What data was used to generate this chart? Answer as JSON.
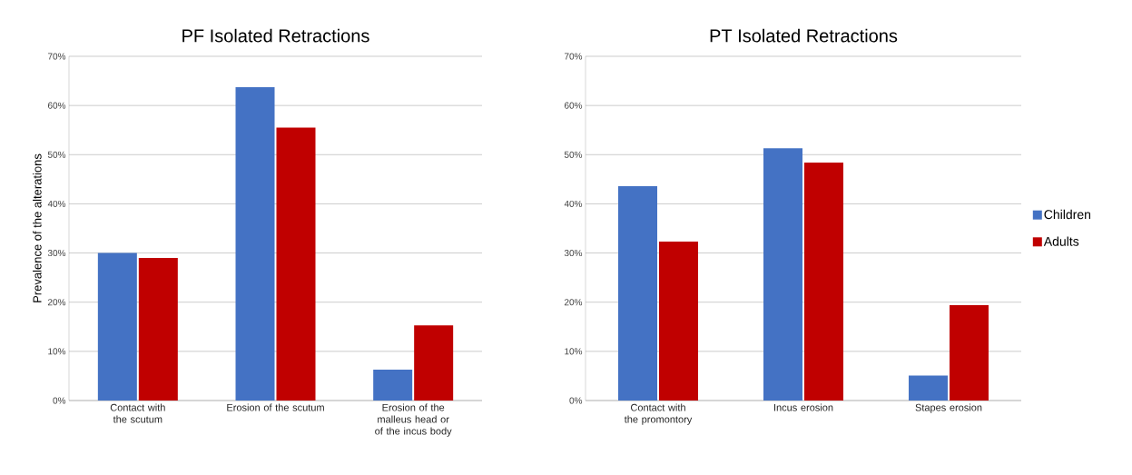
{
  "chart_data": [
    {
      "type": "bar",
      "title": "PF Isolated Retractions",
      "ylabel": "Prevalence of the alterations",
      "categories": [
        "Contact with the scutum",
        "Erosion of the scutum",
        "Erosion of the malleus head or of the incus body"
      ],
      "series": [
        {
          "color": "#4472c4",
          "values": [
            30,
            63.7,
            6.3
          ]
        },
        {
          "color": "#c00000",
          "values": [
            29,
            55.5,
            15.3
          ]
        }
      ],
      "ylim": [
        0,
        70
      ],
      "yticks": [
        {
          "value": 0,
          "label": "0%"
        },
        {
          "value": 10,
          "label": "10%"
        },
        {
          "value": 20,
          "label": "20%"
        },
        {
          "value": 30,
          "label": "30%"
        },
        {
          "value": 40,
          "label": "40%"
        },
        {
          "value": 50,
          "label": "50%"
        },
        {
          "value": 60,
          "label": "60%"
        },
        {
          "value": 70,
          "label": "70%"
        }
      ],
      "grid": "y",
      "legend": false
    },
    {
      "type": "bar",
      "title": "PT Isolated Retractions",
      "categories": [
        "Contact with the promontory",
        "Incus erosion",
        "Stapes erosion"
      ],
      "series": [
        {
          "name": "Children",
          "color": "#4472c4",
          "values": [
            43.6,
            51.3,
            5.1
          ]
        },
        {
          "name": "Adults",
          "color": "#c00000",
          "values": [
            32.3,
            48.4,
            19.4
          ]
        }
      ],
      "ylim": [
        0,
        70
      ],
      "yticks": [
        {
          "value": 0,
          "label": "0%"
        },
        {
          "value": 10,
          "label": "10%"
        },
        {
          "value": 20,
          "label": "20%"
        },
        {
          "value": 30,
          "label": "30%"
        },
        {
          "value": 40,
          "label": "40%"
        },
        {
          "value": 50,
          "label": "50%"
        },
        {
          "value": 60,
          "label": "60%"
        },
        {
          "value": 70,
          "label": "70%"
        }
      ],
      "grid": "y",
      "legend": "right"
    }
  ]
}
